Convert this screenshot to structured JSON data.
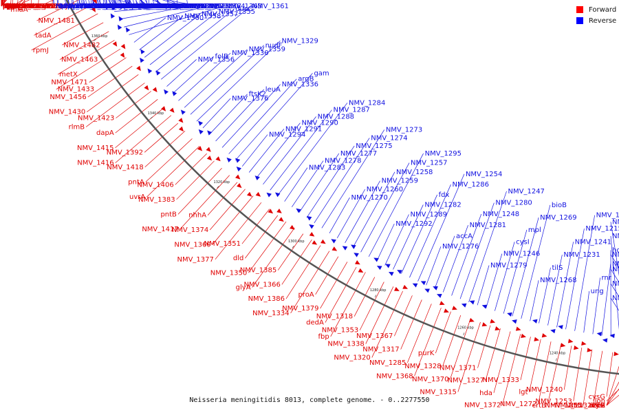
{
  "caption": "Neisseria meningitidis 8013, complete genome. - 0..2277550",
  "legend": [
    {
      "label": "Forward",
      "color": "#ff0000"
    },
    {
      "label": "Reverse",
      "color": "#0000ff"
    }
  ],
  "colors": {
    "forward": "#e00000",
    "reverse": "#1010e0",
    "backbone": "#555555"
  },
  "ticks": [
    "1520 kbp",
    "1500 kbp",
    "1480 kbp",
    "1460 kbp",
    "1440 kbp",
    "1420 kbp",
    "1400 kbp",
    "1380 kbp",
    "1360 kbp",
    "1340 kbp",
    "1320 kbp",
    "1300 kbp",
    "1280 kbp",
    "1260 kbp",
    "1240 kbp",
    "1220 kbp"
  ],
  "forward_labels": [
    "rrmJ",
    "NMV_1592",
    "NMV_1589",
    "NMV_1584",
    "hemB",
    "NMV_1593",
    "murB",
    "NMV_1586",
    "rluF",
    "hisZ",
    "pyrF",
    "NMV_1577",
    "clpA",
    "NMV_1576",
    "NMV_1568",
    "purA",
    "adk",
    "NMV_1570",
    "NMV_1563",
    "NMV_1572",
    "NMV_1556",
    "rfaE1",
    "rfaD",
    "clpS",
    "recJ",
    "pcnB",
    "NMV_1548",
    "NMV_1555",
    "NMV_1533",
    "NMV_1562",
    "NMV_1546",
    "NMV_1529",
    "NMV_1564",
    "rdgC",
    "NMV_1536",
    "panC",
    "NMV_1557.1",
    "speE",
    "dacC",
    "cysA",
    "NMV_1558",
    "NMV_1535",
    "NMV_1537",
    "sodB",
    "NMV_1516",
    "dcd",
    "NMV_1539",
    "NMV_1517",
    "NMV_1508",
    "pilH",
    "NMV_1541",
    "cysT",
    "cysW",
    "NMV_1499",
    "NMV_1497",
    "NMV_1486",
    "NMV_1495",
    "NMV_1496",
    "doc",
    "cytC",
    "NMV_1478",
    "NMV_1468",
    "icd",
    "opaD",
    "NMV_1457",
    "NMV_1477",
    "opaD",
    "miaA",
    "rpmE2",
    "NMV_1481",
    "tadA",
    "rpmJ",
    "NMV_1482",
    "NMV_1463",
    "metX",
    "NMV_1433",
    "NMV_1471",
    "NMV_1456",
    "NMV_1430",
    "rlmB",
    "NMV_1423",
    "dapA",
    "NMV_1415",
    "NMV_1416",
    "NMV_1392",
    "NMV_1418",
    "pntA",
    "uvrA",
    "NMV_1406",
    "NMV_1383",
    "pntB",
    "NMV_1417",
    "nhhA",
    "NMV_1374",
    "NMV_1369",
    "NMV_1377",
    "NMV_1351",
    "dld",
    "NMV_1350",
    "glyA",
    "NMV_1385",
    "NMV_1366",
    "NMV_1386",
    "NMV_1334",
    "proA",
    "NMV_1379",
    "dedA",
    "fbp",
    "NMV_1318",
    "NMV_1353",
    "NMV_1338",
    "NMV_1320",
    "NMV_1367",
    "NMV_1317",
    "NMV_1285",
    "NMV_1368",
    "purK",
    "NMV_1328",
    "NMV_1370",
    "NMV_1315",
    "NMV_1371",
    "NMV_1327",
    "hda",
    "NMV_1372",
    "NMV_1333",
    "lgt",
    "NMV_1272",
    "crtB",
    "NMV_1240",
    "NMV_1253",
    "NMV_1255",
    "NMV_1232",
    "cysG",
    "NMV_1262",
    "cysI",
    "bfrB",
    "lon",
    "recR"
  ],
  "reverse_labels": [
    "NMV_1565",
    "lolB",
    "ispE",
    "pilI",
    "pilK",
    "NMV_1493",
    "NMV_1492",
    "NMV_1560",
    "prs",
    "dnaB",
    "NMV_1506",
    "NMV_1491",
    "NMV_1534",
    "rplY",
    "pilU",
    "NMV_1503",
    "NMV_1505",
    "NMV_1490",
    "panB",
    "ilvA",
    "pilX",
    "NMV_1502",
    "NMV_1489",
    "NMV_1488",
    "dut",
    "NMV_1501",
    "NMV_1487",
    "NMV_1500",
    "NMV_1485",
    "NMV_1483",
    "NMV_1494",
    "NMV_1472",
    "NMV_1465",
    "lst",
    "efp",
    "pip",
    "metF",
    "metE",
    "sdhC",
    "sucB",
    "NMV_1460",
    "NMV_1459",
    "NMV_1449",
    "lpdA2",
    "NMV_1442",
    "sdhD",
    "gltA",
    "sdhA",
    "lpdA3",
    "sdhB",
    "NMV_1436",
    "NMV_1429",
    "sucA",
    "NMV_1428",
    "psd",
    "sucC",
    "trpG",
    "sucD",
    "trpD",
    "serB",
    "clcA",
    "NMV_1414",
    "NMV_1413",
    "NMV_1412",
    "NMV_1410",
    "NMV_1409",
    "NMV_1408",
    "purH",
    "NMV_1401",
    "NMV_1400",
    "NMV_1399",
    "NMV_1398",
    "NMV_1396",
    "NMV_1395",
    "NMV_1394",
    "NMV_1393",
    "NMV_1391",
    "NMV_1390",
    "NMV_1389",
    "NMV_1388",
    "NMV_1387",
    "NMV_1373",
    "NMV_1364",
    "NMV_1363",
    "NMV_1360",
    "NMV_1358",
    "NMV_1357",
    "NMV_1355",
    "dusC",
    "NMV_1361",
    "NMV_1356",
    "folB",
    "NMV_1330",
    "NMV_1359",
    "nudF",
    "NMV_1329",
    "NMV_1376",
    "ftsK2",
    "leuA",
    "NMV_1336",
    "argB",
    "gam",
    "NMV_1294",
    "NMV_1291",
    "NMV_1290",
    "NMV_1288",
    "NMV_1287",
    "NMV_1284",
    "NMV_1283",
    "NMV_1278",
    "NMV_1277",
    "NMV_1275",
    "NMV_1274",
    "NMV_1273",
    "NMV_1270",
    "NMV_1260",
    "NMV_1259",
    "NMV_1258",
    "NMV_1257",
    "NMV_1295",
    "NMV_1292",
    "NMV_1289",
    "NMV_1282",
    "fdx",
    "NMV_1286",
    "NMV_1254",
    "NMV_1276",
    "accA",
    "NMV_1281",
    "NMV_1248",
    "NMV_1280",
    "NMV_1247",
    "NMV_1279",
    "NMV_1246",
    "cysI",
    "mpl",
    "NMV_1269",
    "bioB",
    "NMV_1268",
    "tilS",
    "NMV_1231",
    "NMV_1241",
    "NMV_1215",
    "NMV_1229",
    "ung",
    "rnr",
    "NMV_1211",
    "hom",
    "NMV_1307",
    "NMV_1298",
    "NMV_1309",
    "NMV_1296",
    "NMV_1297",
    "NMV_1208"
  ]
}
